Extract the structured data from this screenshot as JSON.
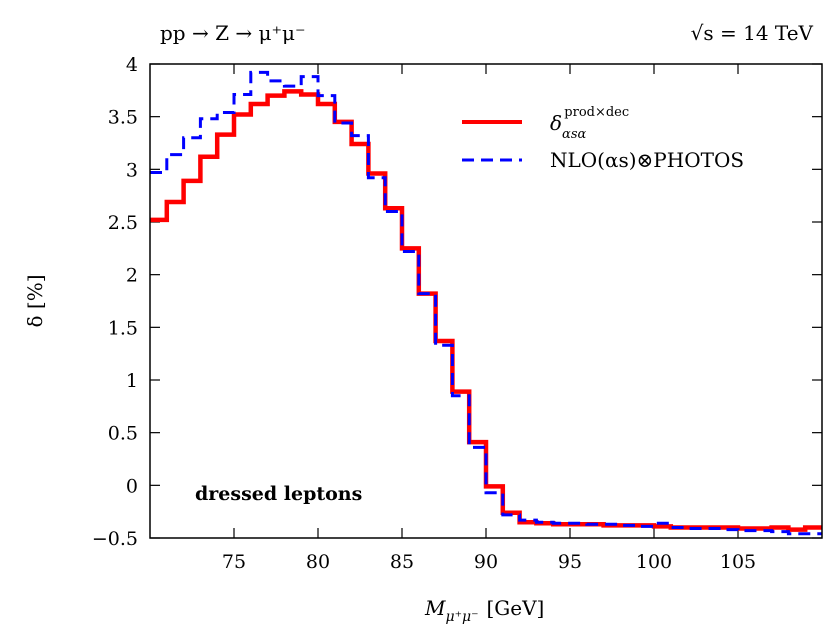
{
  "chart_data": {
    "type": "line",
    "step": true,
    "title_left": "pp → Z → μ⁺μ⁻",
    "title_right": "√s = 14 TeV",
    "annotation": "dressed leptons",
    "xlabel": "M",
    "xlabel_sub": "μ⁺μ⁻",
    "xlabel_unit": "[GeV]",
    "ylabel": "δ [%]",
    "xlim": [
      70,
      110
    ],
    "ylim": [
      -0.5,
      4
    ],
    "xticks": [
      75,
      80,
      85,
      90,
      95,
      100,
      105
    ],
    "yticks": [
      -0.5,
      0,
      0.5,
      1,
      1.5,
      2,
      2.5,
      3,
      3.5,
      4
    ],
    "ytick_labels": [
      "−0.5",
      "0",
      "0.5",
      "1",
      "1.5",
      "2",
      "2.5",
      "3",
      "3.5",
      "4"
    ],
    "legend_position": "top-right",
    "bin_edges_start": 70,
    "bin_width": 1,
    "series": [
      {
        "name": "δ",
        "name_sub": "αsα",
        "name_sup": "prod×dec",
        "color": "#ff0000",
        "style": "solid",
        "values": [
          2.52,
          2.69,
          2.89,
          3.12,
          3.33,
          3.52,
          3.62,
          3.7,
          3.74,
          3.71,
          3.62,
          3.45,
          3.24,
          2.96,
          2.63,
          2.25,
          1.82,
          1.37,
          0.89,
          0.41,
          -0.01,
          -0.26,
          -0.35,
          -0.36,
          -0.37,
          -0.37,
          -0.37,
          -0.38,
          -0.38,
          -0.38,
          -0.39,
          -0.4,
          -0.4,
          -0.4,
          -0.4,
          -0.41,
          -0.41,
          -0.4,
          -0.42,
          -0.4
        ]
      },
      {
        "name": "NLO(αs)⊗PHOTOS",
        "color": "#0000ff",
        "style": "dashed",
        "values": [
          2.97,
          3.14,
          3.3,
          3.48,
          3.54,
          3.71,
          3.92,
          3.84,
          3.79,
          3.88,
          3.7,
          3.44,
          3.32,
          2.92,
          2.6,
          2.22,
          1.82,
          1.33,
          0.85,
          0.36,
          -0.07,
          -0.28,
          -0.33,
          -0.35,
          -0.36,
          -0.36,
          -0.37,
          -0.37,
          -0.38,
          -0.39,
          -0.36,
          -0.4,
          -0.41,
          -0.41,
          -0.42,
          -0.43,
          -0.43,
          -0.44,
          -0.46,
          -0.46
        ]
      }
    ]
  }
}
